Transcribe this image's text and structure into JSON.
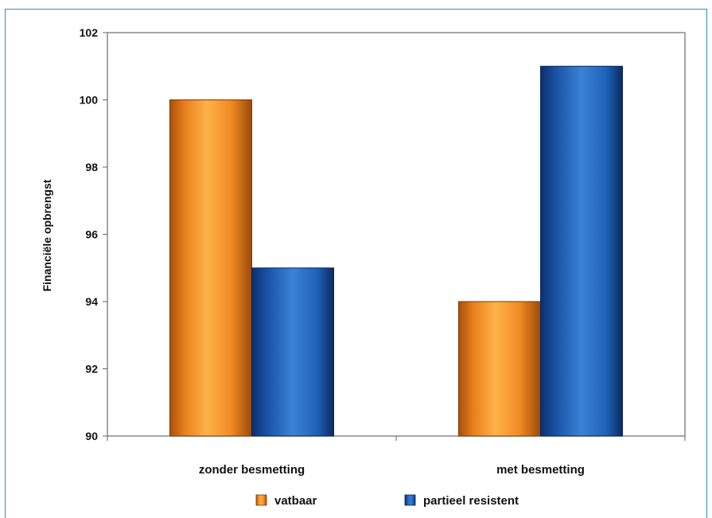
{
  "chart_data": {
    "type": "bar",
    "categories": [
      "zonder besmetting",
      "met besmetting"
    ],
    "series": [
      {
        "name": "vatbaar",
        "values": [
          100,
          94
        ]
      },
      {
        "name": "partieel resistent",
        "values": [
          95,
          101
        ]
      }
    ],
    "ylabel": "Financiële opbrengst",
    "xlabel": "",
    "ylim": [
      90,
      102
    ],
    "yticks": [
      "90",
      "92",
      "94",
      "96",
      "98",
      "100",
      "102"
    ],
    "grid": false,
    "legend_position": "bottom",
    "colors": {
      "vatbaar": "#f08a22",
      "partieel resistent": "#1d62b8",
      "frame": "#2b8fd0"
    }
  }
}
